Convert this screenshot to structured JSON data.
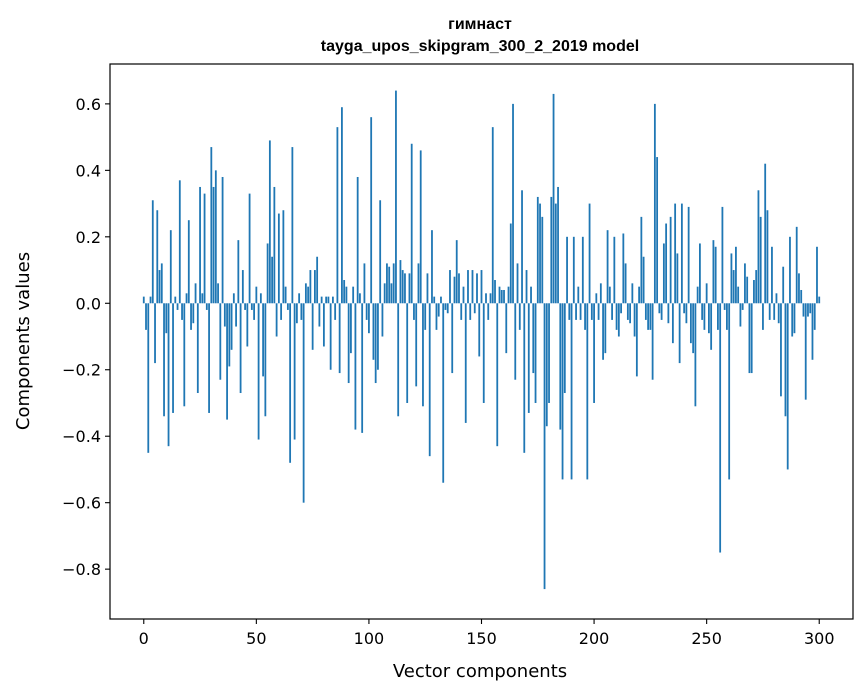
{
  "chart_data": {
    "type": "bar",
    "title": "гимнаст",
    "subtitle": "tayga_upos_skipgram_300_2_2019 model",
    "xlabel": "Vector components",
    "ylabel": "Components values",
    "xlim": [
      -15,
      315
    ],
    "ylim": [
      -0.95,
      0.72
    ],
    "xticks": [
      0,
      50,
      100,
      150,
      200,
      250,
      300
    ],
    "xtick_labels": [
      "0",
      "50",
      "100",
      "150",
      "200",
      "250",
      "300"
    ],
    "yticks": [
      -0.8,
      -0.6,
      -0.4,
      -0.2,
      0.0,
      0.2,
      0.4,
      0.6
    ],
    "ytick_labels": [
      "−0.8",
      "−0.6",
      "−0.4",
      "−0.2",
      "0.0",
      "0.2",
      "0.4",
      "0.6"
    ],
    "bar_color": "#1f77b4",
    "grid": false,
    "legend": "none",
    "values": [
      0.02,
      -0.08,
      -0.45,
      0.02,
      0.31,
      -0.18,
      0.28,
      0.1,
      0.12,
      -0.34,
      -0.09,
      -0.43,
      0.22,
      -0.33,
      0.02,
      -0.02,
      0.37,
      -0.05,
      -0.31,
      0.03,
      0.25,
      -0.08,
      -0.06,
      0.06,
      -0.27,
      0.35,
      0.03,
      0.33,
      -0.02,
      -0.33,
      0.47,
      0.35,
      0.4,
      0.06,
      -0.23,
      0.38,
      -0.07,
      -0.35,
      -0.19,
      -0.14,
      0.03,
      -0.07,
      0.19,
      -0.27,
      0.1,
      -0.02,
      -0.13,
      0.33,
      -0.02,
      -0.05,
      0.05,
      -0.41,
      0.03,
      -0.22,
      -0.34,
      0.18,
      0.49,
      0.14,
      0.35,
      -0.1,
      0.27,
      -0.05,
      0.28,
      0.05,
      -0.02,
      -0.48,
      0.47,
      -0.41,
      -0.06,
      0.03,
      -0.05,
      -0.6,
      0.06,
      0.05,
      0.1,
      -0.14,
      0.1,
      0.14,
      -0.07,
      0.02,
      -0.13,
      0.02,
      0.02,
      -0.2,
      0.02,
      -0.05,
      0.53,
      -0.21,
      0.59,
      0.07,
      0.05,
      -0.24,
      -0.15,
      0.05,
      -0.38,
      0.38,
      0.03,
      -0.39,
      0.12,
      -0.05,
      -0.09,
      0.56,
      -0.17,
      -0.24,
      -0.2,
      0.31,
      -0.1,
      0.06,
      0.12,
      0.11,
      0.06,
      0.12,
      0.64,
      -0.34,
      0.13,
      0.1,
      0.09,
      -0.3,
      0.09,
      0.48,
      -0.05,
      -0.25,
      0.12,
      0.46,
      -0.31,
      -0.08,
      0.09,
      -0.46,
      0.22,
      0.02,
      -0.08,
      -0.04,
      0.02,
      -0.54,
      -0.02,
      -0.03,
      0.1,
      -0.21,
      0.08,
      0.19,
      0.09,
      -0.05,
      0.05,
      -0.36,
      0.1,
      -0.05,
      0.1,
      -0.03,
      0.09,
      -0.16,
      0.1,
      -0.3,
      0.03,
      -0.05,
      0.03,
      0.53,
      0.07,
      -0.43,
      0.05,
      0.04,
      0.04,
      -0.15,
      0.05,
      0.24,
      0.6,
      -0.23,
      0.12,
      -0.08,
      0.34,
      -0.45,
      0.1,
      -0.33,
      0.05,
      -0.21,
      -0.3,
      0.32,
      0.3,
      0.26,
      -0.86,
      -0.37,
      -0.3,
      0.32,
      0.63,
      0.3,
      0.35,
      -0.38,
      -0.53,
      -0.27,
      0.2,
      -0.05,
      -0.53,
      0.2,
      -0.05,
      0.05,
      -0.05,
      0.2,
      -0.08,
      -0.53,
      0.3,
      -0.05,
      -0.3,
      0.03,
      -0.05,
      0.06,
      -0.17,
      -0.15,
      0.22,
      0.05,
      -0.05,
      0.2,
      -0.08,
      -0.1,
      -0.03,
      0.21,
      0.12,
      -0.05,
      -0.06,
      0.06,
      -0.1,
      -0.22,
      0.05,
      0.26,
      0.14,
      -0.05,
      -0.08,
      -0.08,
      -0.23,
      0.6,
      0.44,
      -0.03,
      -0.05,
      0.18,
      0.24,
      -0.06,
      0.26,
      -0.12,
      0.3,
      0.15,
      -0.18,
      0.3,
      -0.03,
      -0.06,
      0.29,
      -0.12,
      -0.15,
      -0.31,
      0.05,
      0.18,
      -0.05,
      -0.08,
      0.06,
      -0.09,
      -0.14,
      0.19,
      0.17,
      -0.08,
      -0.75,
      0.29,
      -0.02,
      -0.08,
      -0.53,
      0.15,
      0.1,
      0.17,
      0.05,
      -0.07,
      -0.02,
      0.12,
      0.08,
      -0.21,
      -0.21,
      0.07,
      0.1,
      0.34,
      0.26,
      -0.08,
      0.42,
      0.28,
      -0.05,
      0.17,
      -0.05,
      0.03,
      -0.06,
      -0.28,
      0.11,
      -0.34,
      -0.5,
      0.2,
      -0.1,
      -0.09,
      0.23,
      0.09,
      0.04,
      -0.04,
      -0.29,
      -0.04,
      -0.03,
      -0.17,
      -0.08,
      0.17,
      0.02
    ]
  }
}
